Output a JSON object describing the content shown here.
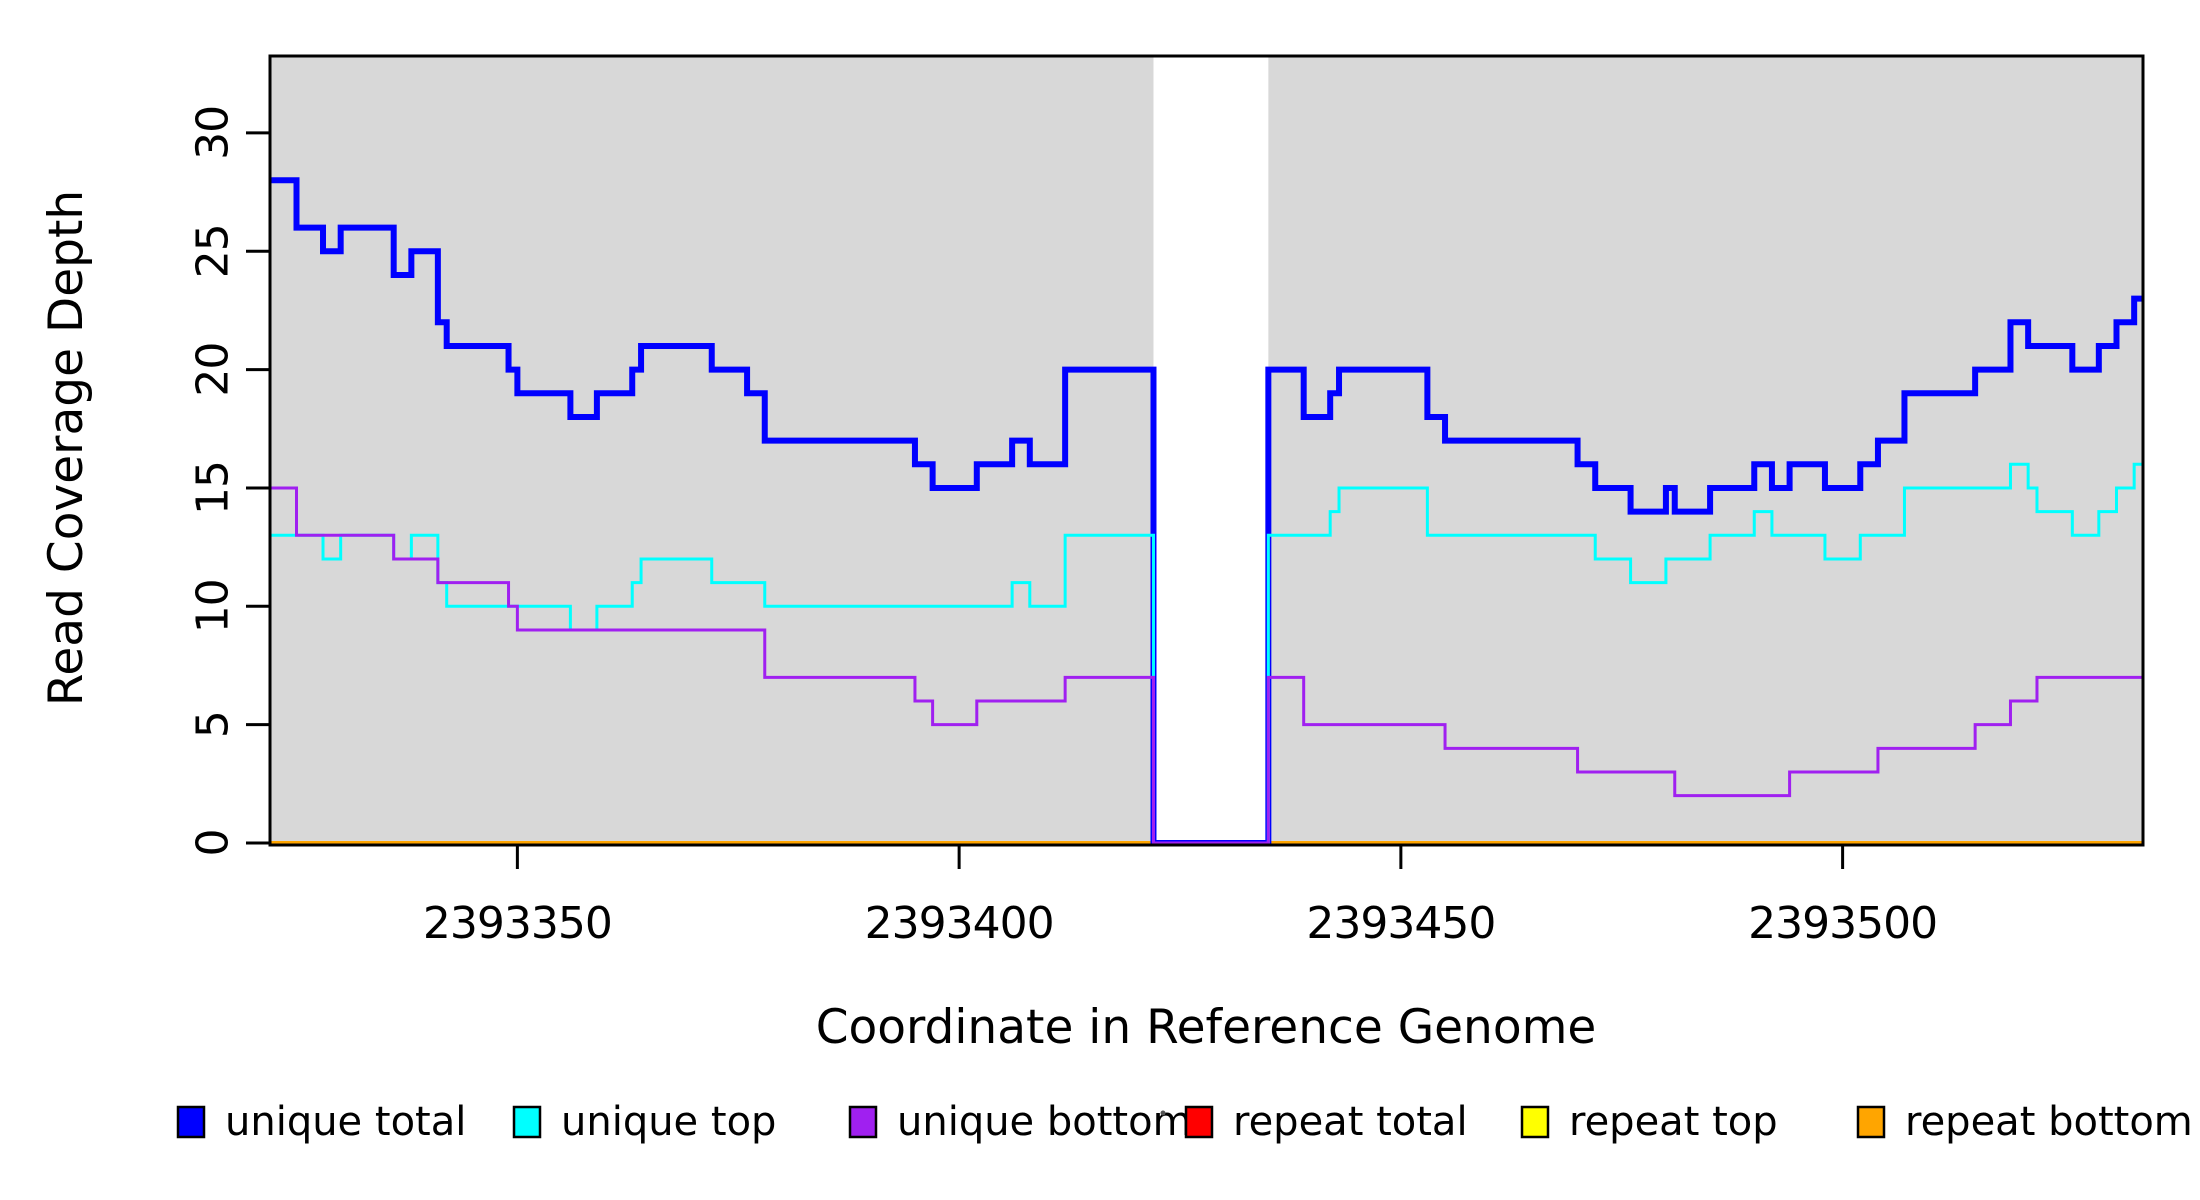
{
  "chart_data": {
    "type": "line",
    "style": "step",
    "title": "",
    "xlabel": "Coordinate in Reference Genome",
    "ylabel": "Read Coverage Depth",
    "xlim": [
      2393322,
      2393534
    ],
    "ylim": [
      0,
      33.25
    ],
    "xticks": [
      2393350,
      2393400,
      2393450,
      2393500
    ],
    "yticks": [
      0,
      5,
      10,
      15,
      20,
      25,
      30
    ],
    "grid": false,
    "legend_position": "bottom",
    "plot_bg_color": "#ffffff",
    "shaded_region_color": "#d8d8d8",
    "shaded_regions": [
      {
        "from": 2393322,
        "to": 2393422
      },
      {
        "from": 2393435,
        "to": 2393534
      }
    ],
    "coverage_gap": {
      "from": 2393422,
      "to": 2393435,
      "note": "all unique series drop to 0; background unshaded"
    },
    "draw_order": [
      "repeat total",
      "repeat top",
      "repeat bottom",
      "unique total",
      "unique top",
      "unique bottom"
    ],
    "series": [
      {
        "name": "unique total",
        "color": "#0000ff",
        "line_width": 6,
        "steps": [
          [
            2393322,
            28
          ],
          [
            2393325,
            26
          ],
          [
            2393328,
            25
          ],
          [
            2393330,
            26
          ],
          [
            2393336,
            24
          ],
          [
            2393338,
            25
          ],
          [
            2393341,
            22
          ],
          [
            2393342,
            21
          ],
          [
            2393349,
            20
          ],
          [
            2393350,
            19
          ],
          [
            2393356,
            18
          ],
          [
            2393359,
            19
          ],
          [
            2393363,
            20
          ],
          [
            2393364,
            21
          ],
          [
            2393372,
            20
          ],
          [
            2393376,
            19
          ],
          [
            2393378,
            17
          ],
          [
            2393395,
            16
          ],
          [
            2393397,
            15
          ],
          [
            2393402,
            16
          ],
          [
            2393406,
            17
          ],
          [
            2393408,
            16
          ],
          [
            2393412,
            20
          ],
          [
            2393422,
            0
          ],
          [
            2393435,
            20
          ],
          [
            2393439,
            18
          ],
          [
            2393442,
            19
          ],
          [
            2393443,
            20
          ],
          [
            2393453,
            18
          ],
          [
            2393455,
            17
          ],
          [
            2393470,
            16
          ],
          [
            2393472,
            15
          ],
          [
            2393476,
            14
          ],
          [
            2393480,
            15
          ],
          [
            2393481,
            14
          ],
          [
            2393485,
            15
          ],
          [
            2393490,
            16
          ],
          [
            2393492,
            15
          ],
          [
            2393494,
            16
          ],
          [
            2393498,
            15
          ],
          [
            2393502,
            16
          ],
          [
            2393504,
            17
          ],
          [
            2393507,
            19
          ],
          [
            2393515,
            20
          ],
          [
            2393519,
            22
          ],
          [
            2393521,
            21
          ],
          [
            2393526,
            20
          ],
          [
            2393529,
            21
          ],
          [
            2393531,
            22
          ],
          [
            2393533,
            23
          ]
        ]
      },
      {
        "name": "unique top",
        "color": "#00ffff",
        "line_width": 3,
        "steps": [
          [
            2393322,
            13
          ],
          [
            2393328,
            12
          ],
          [
            2393330,
            13
          ],
          [
            2393336,
            12
          ],
          [
            2393338,
            13
          ],
          [
            2393341,
            11
          ],
          [
            2393342,
            10
          ],
          [
            2393356,
            9
          ],
          [
            2393359,
            10
          ],
          [
            2393363,
            11
          ],
          [
            2393364,
            12
          ],
          [
            2393372,
            11
          ],
          [
            2393378,
            10
          ],
          [
            2393406,
            11
          ],
          [
            2393408,
            10
          ],
          [
            2393412,
            13
          ],
          [
            2393422,
            0
          ],
          [
            2393435,
            13
          ],
          [
            2393442,
            14
          ],
          [
            2393443,
            15
          ],
          [
            2393453,
            13
          ],
          [
            2393472,
            12
          ],
          [
            2393476,
            11
          ],
          [
            2393480,
            12
          ],
          [
            2393485,
            13
          ],
          [
            2393490,
            14
          ],
          [
            2393492,
            13
          ],
          [
            2393498,
            12
          ],
          [
            2393502,
            13
          ],
          [
            2393507,
            15
          ],
          [
            2393519,
            16
          ],
          [
            2393521,
            15
          ],
          [
            2393522,
            14
          ],
          [
            2393526,
            13
          ],
          [
            2393529,
            14
          ],
          [
            2393531,
            15
          ],
          [
            2393533,
            16
          ]
        ]
      },
      {
        "name": "unique bottom",
        "color": "#a020f0",
        "line_width": 3,
        "steps": [
          [
            2393322,
            15
          ],
          [
            2393325,
            13
          ],
          [
            2393336,
            12
          ],
          [
            2393341,
            11
          ],
          [
            2393349,
            10
          ],
          [
            2393350,
            9
          ],
          [
            2393378,
            7
          ],
          [
            2393395,
            6
          ],
          [
            2393397,
            5
          ],
          [
            2393402,
            6
          ],
          [
            2393412,
            7
          ],
          [
            2393422,
            0
          ],
          [
            2393435,
            7
          ],
          [
            2393439,
            5
          ],
          [
            2393455,
            4
          ],
          [
            2393470,
            3
          ],
          [
            2393481,
            2
          ],
          [
            2393494,
            3
          ],
          [
            2393504,
            4
          ],
          [
            2393515,
            5
          ],
          [
            2393519,
            6
          ],
          [
            2393522,
            7
          ]
        ]
      },
      {
        "name": "repeat total",
        "color": "#ff0000",
        "line_width": 3,
        "steps": [
          [
            2393322,
            0
          ]
        ]
      },
      {
        "name": "repeat top",
        "color": "#ffff00",
        "line_width": 3,
        "steps": [
          [
            2393322,
            0
          ]
        ]
      },
      {
        "name": "repeat bottom",
        "color": "#ffa500",
        "line_width": 4,
        "steps": [
          [
            2393322,
            0
          ]
        ]
      }
    ],
    "legend": [
      {
        "label": "unique total",
        "color": "#0000ff"
      },
      {
        "label": "unique top",
        "color": "#00ffff"
      },
      {
        "label": "unique bottom",
        "color": "#a020f0"
      },
      {
        "label": "repeat total",
        "color": "#ff0000"
      },
      {
        "label": "repeat top",
        "color": "#ffff00"
      },
      {
        "label": "repeat bottom",
        "color": "#ffa500"
      }
    ]
  }
}
